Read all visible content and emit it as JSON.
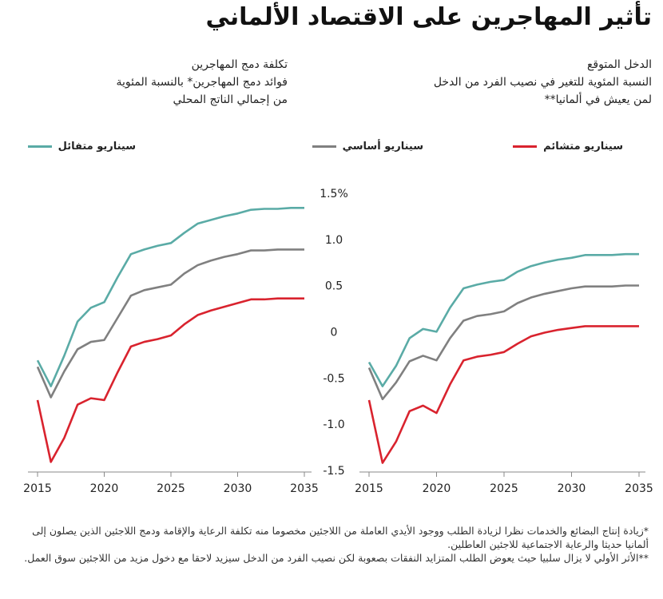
{
  "chart_data": {
    "type": "line",
    "title": "تأثير المهاجرين على الاقتصاد الألماني",
    "x": [
      2015,
      2016,
      2017,
      2018,
      2019,
      2020,
      2021,
      2022,
      2023,
      2024,
      2025,
      2026,
      2027,
      2028,
      2029,
      2030,
      2031,
      2032,
      2033,
      2034,
      2035
    ],
    "xlim": [
      2015,
      2035
    ],
    "xticks": [
      2015,
      2020,
      2025,
      2030,
      2035
    ],
    "ylim": [
      -1.5,
      1.5
    ],
    "yticks": [
      {
        "value": 1.5,
        "label": "1.5%"
      },
      {
        "value": 1,
        "label": "1.0"
      },
      0.5,
      0,
      -0.5,
      {
        "value": -1,
        "label": "-1.0"
      },
      -1.5
    ],
    "series": [
      {
        "name": "سيناريو متشائم",
        "color": "#d9232e"
      },
      {
        "name": "سيناريو أساسي",
        "color": "#808080"
      },
      {
        "name": "سيناريو متفائل",
        "color": "#5aaba6"
      }
    ],
    "panels": [
      {
        "subtitle": [
          "الدخل المتوقع",
          "النسبة المئوية للتغير في نصيب الفرد من الدخل",
          "لمن يعيش في ألمانيا**"
        ],
        "series_values": [
          [
            -0.73,
            -1.41,
            -1.18,
            -0.85,
            -0.79,
            -0.87,
            -0.56,
            -0.3,
            -0.26,
            -0.24,
            -0.21,
            -0.12,
            -0.04,
            0,
            0.03,
            0.05,
            0.07,
            0.07,
            0.07,
            0.07,
            0.07
          ],
          [
            -0.38,
            -0.72,
            -0.54,
            -0.31,
            -0.25,
            -0.3,
            -0.06,
            0.13,
            0.18,
            0.2,
            0.23,
            0.32,
            0.38,
            0.42,
            0.45,
            0.48,
            0.5,
            0.5,
            0.5,
            0.51,
            0.51
          ],
          [
            -0.32,
            -0.58,
            -0.36,
            -0.06,
            0.04,
            0.01,
            0.27,
            0.48,
            0.52,
            0.55,
            0.57,
            0.66,
            0.72,
            0.76,
            0.79,
            0.81,
            0.84,
            0.84,
            0.84,
            0.85,
            0.85
          ]
        ]
      },
      {
        "subtitle": [
          "تكلفة دمج المهاجرين",
          "فوائد دمج المهاجرين* بالنسبة المئوية",
          "من إجمالي الناتج المحلي"
        ],
        "series_values": [
          [
            -0.73,
            -1.4,
            -1.14,
            -0.78,
            -0.71,
            -0.73,
            -0.43,
            -0.15,
            -0.1,
            -0.07,
            -0.03,
            0.09,
            0.19,
            0.24,
            0.28,
            0.32,
            0.36,
            0.36,
            0.37,
            0.37,
            0.37
          ],
          [
            -0.37,
            -0.7,
            -0.42,
            -0.18,
            -0.1,
            -0.08,
            0.16,
            0.4,
            0.46,
            0.49,
            0.52,
            0.64,
            0.73,
            0.78,
            0.82,
            0.85,
            0.89,
            0.89,
            0.9,
            0.9,
            0.9
          ],
          [
            -0.3,
            -0.58,
            -0.25,
            0.12,
            0.27,
            0.33,
            0.6,
            0.85,
            0.9,
            0.94,
            0.97,
            1.08,
            1.18,
            1.22,
            1.26,
            1.29,
            1.33,
            1.34,
            1.34,
            1.35,
            1.35
          ]
        ]
      }
    ],
    "footnotes": [
      "*زيادة إنتاج البضائع والخدمات نظرا لزيادة الطلب ووجود الأيدي العاملة من اللاجئين مخصوما منه تكلفة الرعاية والإقامة ودمج اللاجئين الذين يصلون إلى ألمانيا حديثا والرعاية الاجتماعية للاجئين العاطلين.",
      "**الأثر الأولي لا يزال سلبيا حيث يعوض الطلب المتزايد النفقات بصعوبة لكن نصيب الفرد من الدخل سيزيد لاحقا مع دخول مزيد من اللاجئين سوق العمل."
    ]
  }
}
